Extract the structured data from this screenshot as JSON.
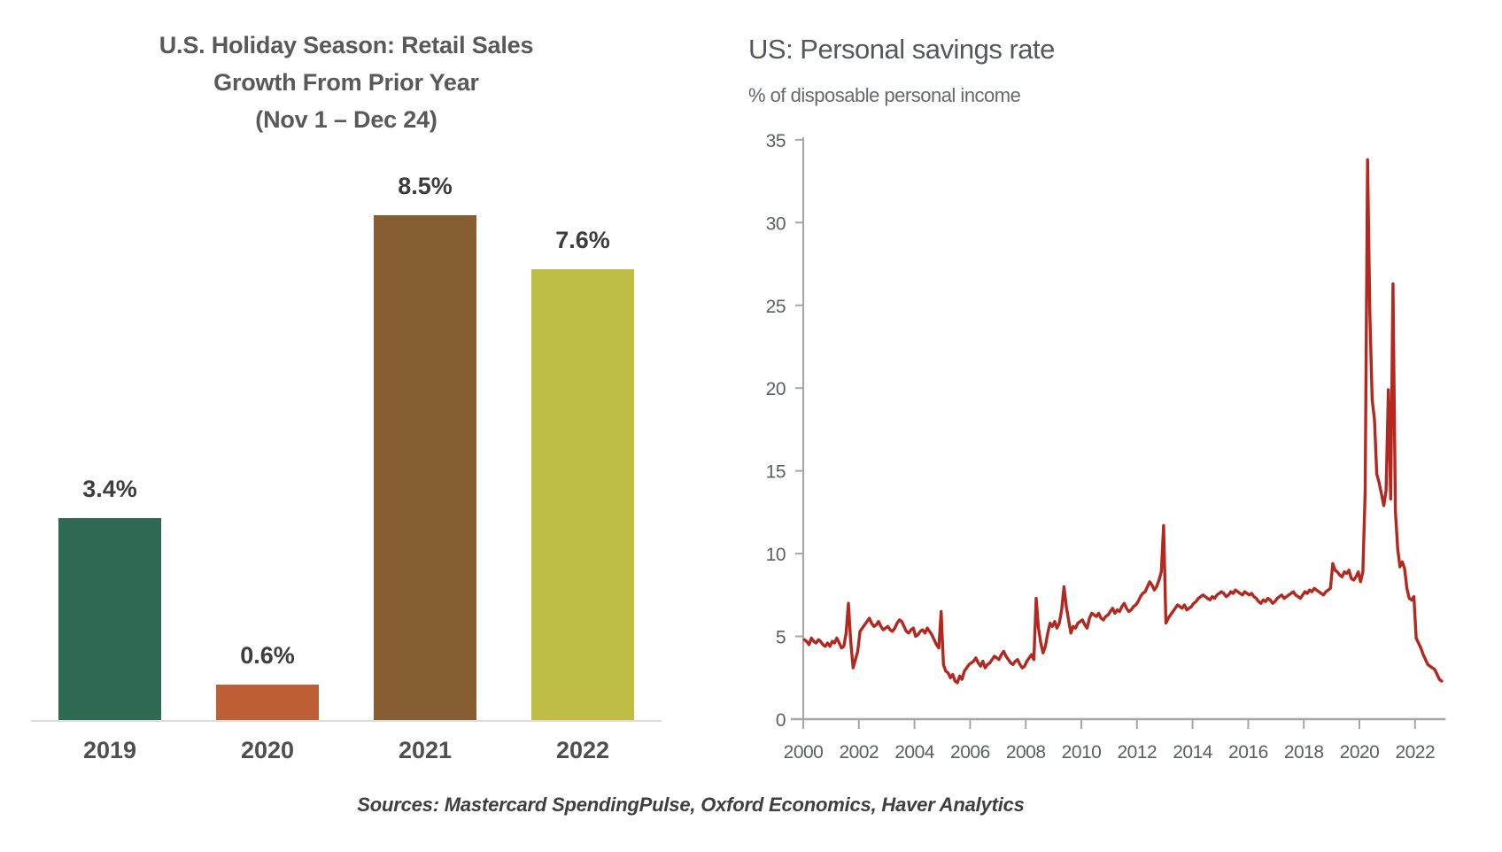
{
  "page": {
    "background": "#FFFFFF"
  },
  "footer": {
    "sources": "Sources: Mastercard SpendingPulse, Oxford Economics, Haver Analytics"
  },
  "chart_data": [
    {
      "type": "bar",
      "title": "U.S. Holiday Season: Retail Sales Growth From Prior Year (Nov 1 – Dec 24)",
      "title_lines": [
        "U.S. Holiday Season: Retail Sales",
        "Growth From Prior Year",
        "(Nov 1 – Dec 24)"
      ],
      "categories": [
        "2019",
        "2020",
        "2021",
        "2022"
      ],
      "values": [
        3.4,
        0.6,
        8.5,
        7.6
      ],
      "value_labels": [
        "3.4%",
        "0.6%",
        "8.5%",
        "7.6%"
      ],
      "bar_colors": [
        "#2E6B52",
        "#BE5F36",
        "#875E31",
        "#BFBE44"
      ],
      "xlabel": "",
      "ylabel": "",
      "ylim": [
        0,
        9.2
      ],
      "grid": false,
      "legend_position": "none"
    },
    {
      "type": "line",
      "title": "US: Personal savings rate",
      "subtitle": "% of disposable personal income",
      "xlabel": "",
      "ylabel": "",
      "xticks": [
        2000,
        2002,
        2004,
        2006,
        2008,
        2010,
        2012,
        2014,
        2016,
        2018,
        2020,
        2022
      ],
      "yticks": [
        0,
        5,
        10,
        15,
        20,
        25,
        30,
        35
      ],
      "xlim": [
        2000,
        2023.1
      ],
      "ylim": [
        0,
        35
      ],
      "grid": false,
      "axis_color": "#A6A6A6",
      "legend_position": "none",
      "series": [
        {
          "name": "Personal savings rate",
          "color": "#B3281F",
          "x_start_year": 2000,
          "x_frequency": "monthly",
          "values": [
            4.8,
            4.7,
            4.5,
            4.9,
            4.7,
            4.6,
            4.8,
            4.7,
            4.5,
            4.4,
            4.6,
            4.4,
            4.7,
            4.6,
            4.9,
            4.6,
            4.3,
            4.4,
            5.2,
            7.0,
            4.7,
            3.1,
            3.6,
            4.1,
            5.3,
            5.5,
            5.7,
            5.9,
            6.1,
            5.8,
            5.6,
            5.7,
            5.9,
            5.6,
            5.4,
            5.5,
            5.6,
            5.4,
            5.3,
            5.5,
            5.8,
            6.0,
            5.9,
            5.6,
            5.3,
            5.2,
            5.4,
            5.5,
            5.0,
            5.1,
            5.3,
            5.4,
            5.2,
            5.5,
            5.3,
            5.1,
            4.8,
            4.5,
            4.3,
            6.5,
            3.3,
            2.9,
            2.8,
            2.5,
            2.7,
            2.3,
            2.2,
            2.6,
            2.4,
            2.9,
            3.1,
            3.3,
            3.4,
            3.5,
            3.7,
            3.4,
            3.2,
            3.5,
            3.1,
            3.3,
            3.4,
            3.6,
            3.8,
            3.7,
            3.6,
            3.9,
            4.1,
            3.8,
            3.6,
            3.4,
            3.3,
            3.5,
            3.6,
            3.3,
            3.1,
            3.2,
            3.5,
            3.7,
            3.9,
            3.6,
            7.3,
            5.5,
            4.6,
            4.0,
            4.4,
            5.2,
            5.8,
            5.6,
            5.9,
            5.5,
            5.8,
            6.6,
            8.0,
            6.8,
            6.0,
            5.2,
            5.6,
            5.5,
            5.8,
            5.9,
            6.0,
            5.7,
            5.5,
            6.1,
            6.4,
            6.3,
            6.2,
            6.4,
            6.1,
            6.0,
            6.2,
            6.3,
            6.5,
            6.7,
            6.4,
            6.6,
            6.5,
            6.8,
            7.0,
            6.7,
            6.5,
            6.6,
            6.8,
            6.9,
            7.1,
            7.4,
            7.6,
            7.7,
            8.0,
            8.3,
            8.1,
            7.8,
            8.0,
            8.4,
            8.9,
            11.7,
            5.8,
            6.1,
            6.3,
            6.5,
            6.7,
            6.9,
            6.8,
            6.7,
            6.9,
            6.6,
            6.7,
            6.8,
            7.0,
            7.1,
            7.3,
            7.4,
            7.5,
            7.4,
            7.3,
            7.2,
            7.4,
            7.3,
            7.5,
            7.6,
            7.7,
            7.6,
            7.4,
            7.5,
            7.7,
            7.6,
            7.8,
            7.7,
            7.6,
            7.5,
            7.7,
            7.6,
            7.5,
            7.6,
            7.4,
            7.3,
            7.1,
            7.0,
            7.2,
            7.1,
            7.3,
            7.2,
            7.0,
            7.1,
            7.3,
            7.4,
            7.5,
            7.3,
            7.4,
            7.5,
            7.6,
            7.7,
            7.5,
            7.4,
            7.3,
            7.5,
            7.7,
            7.6,
            7.8,
            7.7,
            7.9,
            7.8,
            7.7,
            7.6,
            7.5,
            7.7,
            7.8,
            7.9,
            9.4,
            9.0,
            8.9,
            8.7,
            8.6,
            8.9,
            8.8,
            9.0,
            8.5,
            8.4,
            8.6,
            8.9,
            8.3,
            8.9,
            13.8,
            33.8,
            24.5,
            19.3,
            18.1,
            14.8,
            14.3,
            13.6,
            12.9,
            13.8,
            19.9,
            13.3,
            26.3,
            12.6,
            10.3,
            9.2,
            9.5,
            9.1,
            7.9,
            7.3,
            7.2,
            7.4,
            4.9,
            4.6,
            4.3,
            3.9,
            3.6,
            3.3,
            3.2,
            3.1,
            3.0,
            2.7,
            2.4,
            2.3
          ]
        }
      ]
    }
  ]
}
